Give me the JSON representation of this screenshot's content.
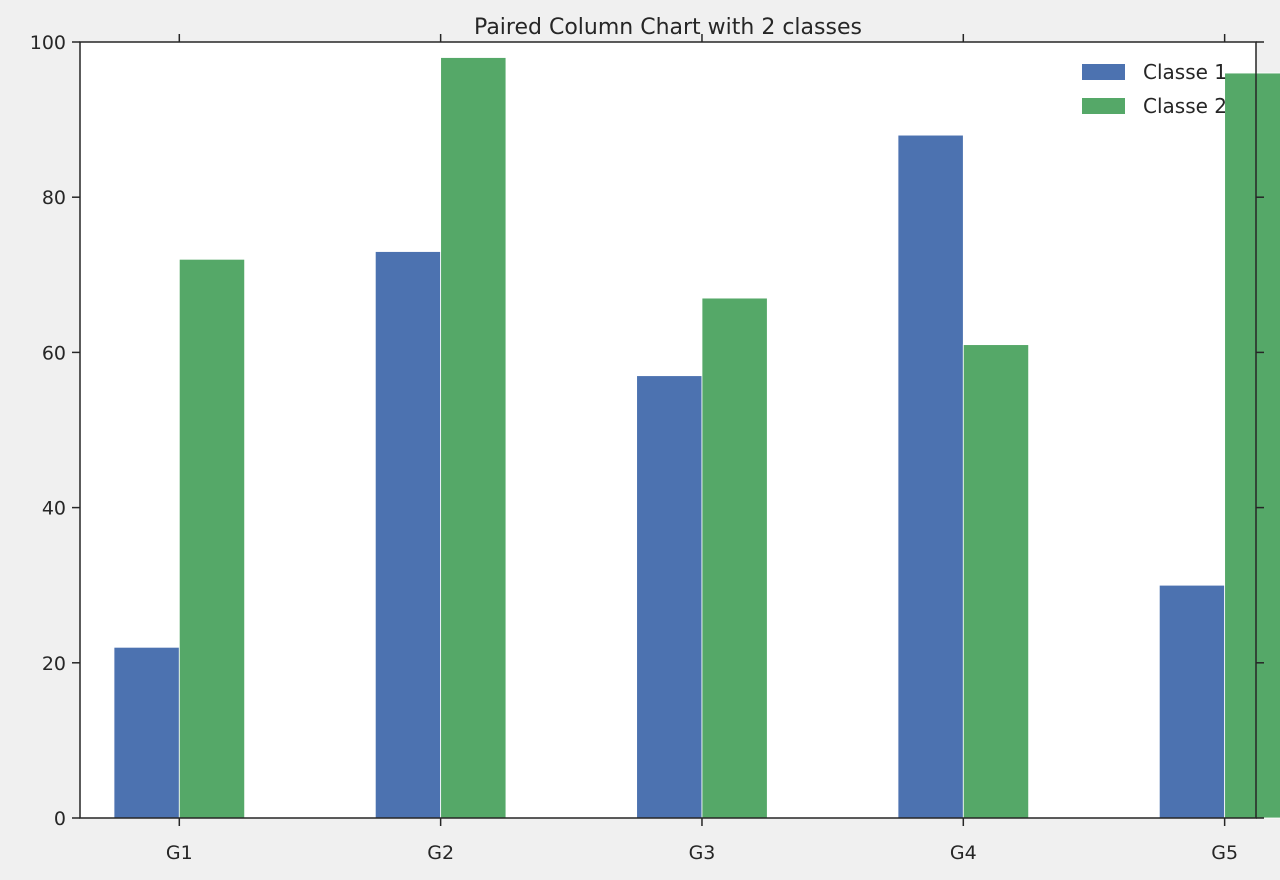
{
  "chart_data": {
    "type": "bar",
    "title": "Paired Column Chart with 2 classes",
    "xlabel": "",
    "ylabel": "",
    "categories": [
      "G1",
      "G2",
      "G3",
      "G4",
      "G5"
    ],
    "series": [
      {
        "name": "Classe 1",
        "values": [
          22,
          73,
          57,
          88,
          30
        ],
        "color": "#4c72b0"
      },
      {
        "name": "Classe 2",
        "values": [
          72,
          98,
          67,
          61,
          96
        ],
        "color": "#55a868"
      }
    ],
    "ylim": [
      0,
      100
    ],
    "yticks": [
      0,
      20,
      40,
      60,
      80,
      100
    ],
    "grid": false,
    "legend_position": "top-right"
  }
}
